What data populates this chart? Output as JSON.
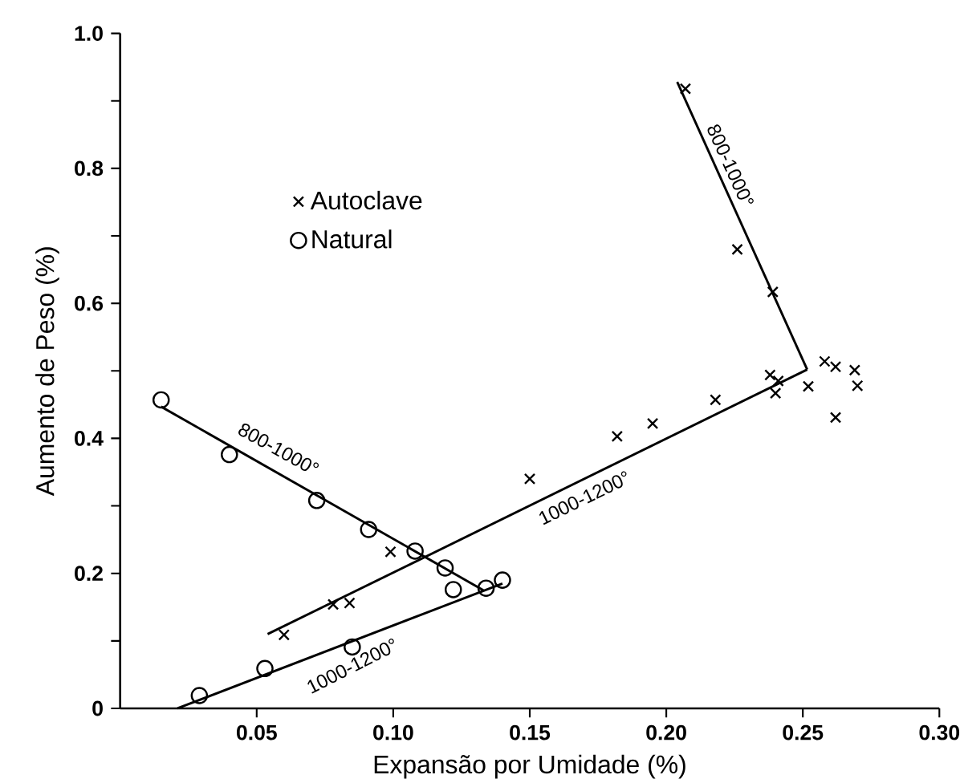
{
  "chart_data": {
    "type": "scatter",
    "xlabel": "Expansão por Umidade (%)",
    "ylabel": "Aumento de Peso (%)",
    "xlim": [
      0,
      0.3
    ],
    "ylim": [
      0,
      1.0
    ],
    "xticks": [
      {
        "value": 0.05,
        "label": "0.05"
      },
      {
        "value": 0.1,
        "label": "0.10"
      },
      {
        "value": 0.15,
        "label": "0.15"
      },
      {
        "value": 0.2,
        "label": "0.20"
      },
      {
        "value": 0.25,
        "label": "0.25"
      },
      {
        "value": 0.3,
        "label": "0.30"
      }
    ],
    "yticks": [
      0,
      {
        "value": 0.1,
        "label": null
      },
      0.2,
      {
        "value": 0.3,
        "label": null
      },
      0.4,
      {
        "value": 0.5,
        "label": null
      },
      0.6,
      {
        "value": 0.7,
        "label": null
      },
      0.8,
      {
        "value": 0.9,
        "label": null
      },
      {
        "value": 1.0,
        "label": "1.0"
      }
    ],
    "legend": "top left",
    "grid": false,
    "series": [
      {
        "name": "Autoclave",
        "color": "#000000",
        "marker": "cross",
        "x": [
          0.06,
          0.078,
          0.084,
          0.099,
          0.15,
          0.182,
          0.195,
          0.218,
          0.238,
          0.241,
          0.24,
          0.252,
          0.258,
          0.262,
          0.269,
          0.27,
          0.262,
          0.239,
          0.226,
          0.207
        ],
        "values": [
          0.109,
          0.154,
          0.156,
          0.232,
          0.34,
          0.403,
          0.422,
          0.457,
          0.494,
          0.485,
          0.467,
          0.477,
          0.514,
          0.506,
          0.501,
          0.478,
          0.431,
          0.617,
          0.68,
          0.918
        ]
      },
      {
        "name": "Natural",
        "color": "#000000",
        "marker": "circle",
        "x": [
          0.015,
          0.04,
          0.072,
          0.091,
          0.108,
          0.119,
          0.029,
          0.053,
          0.085,
          0.122,
          0.134,
          0.14
        ],
        "values": [
          0.457,
          0.376,
          0.308,
          0.265,
          0.233,
          0.208,
          0.019,
          0.059,
          0.091,
          0.176,
          0.178,
          0.19
        ]
      },
      {
        "type": "line",
        "color": "#000000",
        "marker": "none",
        "line_style": "solid",
        "x": [
          0.054,
          0.2516
        ],
        "values": [
          0.11,
          0.502
        ]
      },
      {
        "type": "line",
        "color": "#000000",
        "marker": "none",
        "line_style": "solid",
        "x": [
          0.204,
          0.2516
        ],
        "values": [
          0.928,
          0.502
        ]
      },
      {
        "type": "line",
        "color": "#000000",
        "marker": "none",
        "line_style": "solid",
        "x": [
          0.015,
          0.133
        ],
        "values": [
          0.447,
          0.175
        ]
      },
      {
        "type": "line",
        "color": "#000000",
        "marker": "none",
        "line_style": "solid",
        "x": [
          0.021,
          0.14
        ],
        "values": [
          0.0,
          0.185
        ]
      }
    ],
    "annotations": [
      "800-1000°",
      "1000-1200°",
      "1000-1200°",
      "800-1000°"
    ]
  }
}
